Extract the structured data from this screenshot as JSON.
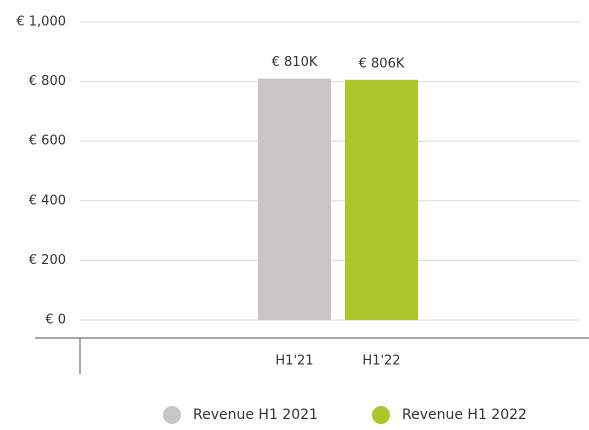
{
  "chart_data": {
    "type": "bar",
    "categories": [
      "H1'21",
      "H1'22"
    ],
    "values": [
      810,
      806
    ],
    "value_labels": [
      "€ 810K",
      "€ 806K"
    ],
    "colors": [
      "#c8c6c3",
      "#acc62b"
    ],
    "legend": [
      "Revenue H1 2021",
      "Revenue H1 2022"
    ],
    "ylim": [
      0,
      1000
    ],
    "yticks": [
      {
        "value": 0,
        "label": "€ 0"
      },
      {
        "value": 200,
        "label": "€ 200"
      },
      {
        "value": 400,
        "label": "€ 400"
      },
      {
        "value": 600,
        "label": "€ 600"
      },
      {
        "value": 800,
        "label": "€ 800"
      },
      {
        "value": 1000,
        "label": "€ 1,000"
      }
    ],
    "grid": true
  }
}
